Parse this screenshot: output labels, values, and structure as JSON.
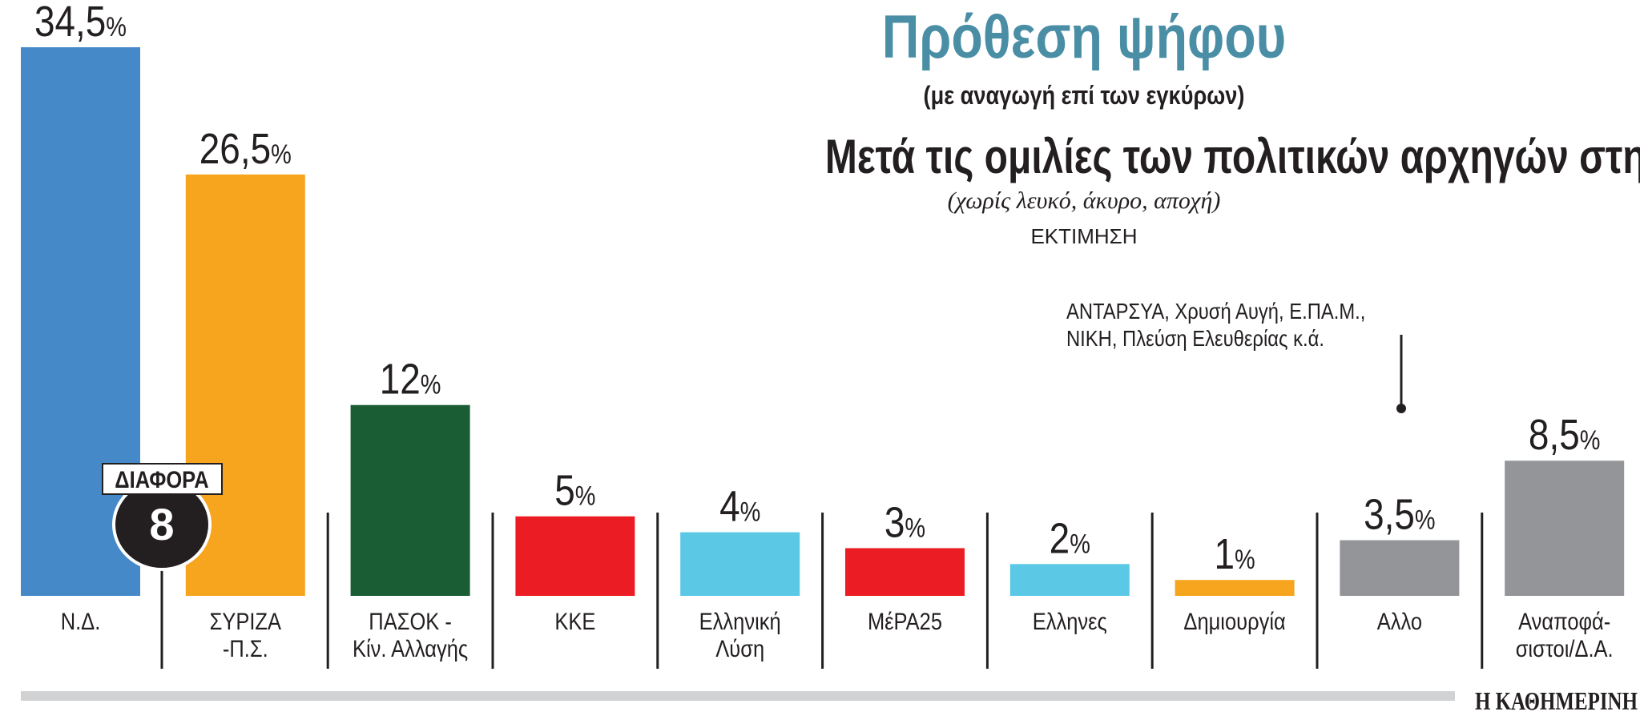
{
  "chart_data": {
    "type": "bar",
    "title": "Πρόθεση ψήφου",
    "subtitle": "(με αναγωγή επί των εγκύρων)",
    "heading": "Μετά τις ομιλίες των πολιτικών αρχηγών στη ΔΕΘ",
    "note": "(χωρίς λευκό, άκυρο, αποχή)",
    "estimate_label": "ΕΚΤΙΜΗΣΗ",
    "categories": [
      [
        "Ν.Δ."
      ],
      [
        "ΣΥΡΙΖΑ",
        "-Π.Σ."
      ],
      [
        "ΠΑΣΟΚ -",
        "Κίν. Αλλαγής"
      ],
      [
        "ΚΚΕ"
      ],
      [
        "Ελληνική",
        "Λύση"
      ],
      [
        "ΜέΡΑ25"
      ],
      [
        "Ελληνες"
      ],
      [
        "Δημιουργία"
      ],
      [
        "Αλλο"
      ],
      [
        "Αναποφά-",
        "σιστοι/Δ.Α."
      ]
    ],
    "values": [
      34.5,
      26.5,
      12,
      5,
      4,
      3,
      2,
      1,
      3.5,
      8.5
    ],
    "value_labels": [
      "34,5",
      "26,5",
      "12",
      "5",
      "4",
      "3",
      "2",
      "1",
      "3,5",
      "8,5"
    ],
    "unit": "%",
    "colors": [
      "#4589c9",
      "#f7a51e",
      "#1a5c33",
      "#ec1c24",
      "#5bc8e6",
      "#ec1c24",
      "#5bc8e6",
      "#f7a51e",
      "#939598",
      "#939598"
    ],
    "ylim": [
      0,
      34.5
    ],
    "grid": false,
    "difference": {
      "label": "ΔΙΑΦΟΡΑ",
      "value": "8"
    },
    "annotation": {
      "target": "Αλλο",
      "lines": [
        "ΑΝΤΑΡΣΥΑ, Χρυσή Αυγή, Ε.ΠΑ.Μ.,",
        "ΝΙΚΗ, Πλεύση Ελευθερίας κ.ά."
      ]
    },
    "title_color": "#4a8ea6"
  },
  "brand": "Η ΚΑΘΗΜΕΡΙΝΗ"
}
